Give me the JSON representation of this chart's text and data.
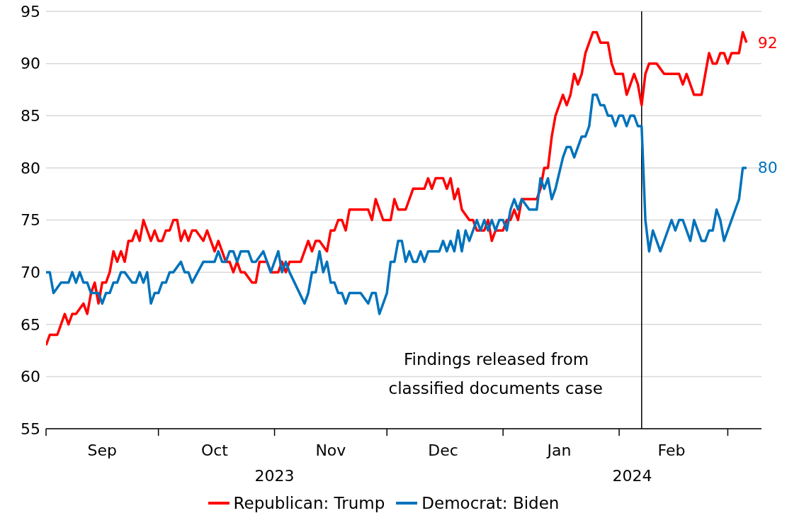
{
  "chart_data": {
    "type": "line",
    "series": [
      {
        "name": "Republican: Trump",
        "color": "#ff0000",
        "x": [
          "2023-09-01",
          "2023-09-02",
          "2023-09-04",
          "2023-09-06",
          "2023-09-07",
          "2023-09-08",
          "2023-09-09",
          "2023-09-11",
          "2023-09-12",
          "2023-09-13",
          "2023-09-14",
          "2023-09-15",
          "2023-09-16",
          "2023-09-17",
          "2023-09-18",
          "2023-09-19",
          "2023-09-20",
          "2023-09-21",
          "2023-09-22",
          "2023-09-23",
          "2023-09-24",
          "2023-09-25",
          "2023-09-26",
          "2023-09-27",
          "2023-09-28",
          "2023-09-29",
          "2023-09-30",
          "2023-10-01",
          "2023-10-02",
          "2023-10-03",
          "2023-10-04",
          "2023-10-05",
          "2023-10-06",
          "2023-10-07",
          "2023-10-08",
          "2023-10-09",
          "2023-10-10",
          "2023-10-11",
          "2023-10-13",
          "2023-10-14",
          "2023-10-15",
          "2023-10-16",
          "2023-10-17",
          "2023-10-18",
          "2023-10-19",
          "2023-10-20",
          "2023-10-21",
          "2023-10-22",
          "2023-10-23",
          "2023-10-24",
          "2023-10-26",
          "2023-10-27",
          "2023-10-28",
          "2023-10-30",
          "2023-10-31",
          "2023-11-02",
          "2023-11-03",
          "2023-11-04",
          "2023-11-05",
          "2023-11-08",
          "2023-11-10",
          "2023-11-11",
          "2023-11-12",
          "2023-11-13",
          "2023-11-15",
          "2023-11-16",
          "2023-11-17",
          "2023-11-18",
          "2023-11-19",
          "2023-11-20",
          "2023-11-21",
          "2023-11-26",
          "2023-11-27",
          "2023-11-28",
          "2023-11-30",
          "2023-12-02",
          "2023-12-03",
          "2023-12-04",
          "2023-12-06",
          "2023-12-08",
          "2023-12-11",
          "2023-12-12",
          "2023-12-13",
          "2023-12-14",
          "2023-12-16",
          "2023-12-17",
          "2023-12-18",
          "2023-12-19",
          "2023-12-20",
          "2023-12-21",
          "2023-12-23",
          "2023-12-24",
          "2023-12-25",
          "2023-12-27",
          "2023-12-28",
          "2023-12-29",
          "2023-12-30",
          "2024-01-01",
          "2024-01-02",
          "2024-01-03",
          "2024-01-04",
          "2024-01-05",
          "2024-01-06",
          "2024-01-10",
          "2024-01-11",
          "2024-01-12",
          "2024-01-13",
          "2024-01-14",
          "2024-01-15",
          "2024-01-17",
          "2024-01-18",
          "2024-01-19",
          "2024-01-20",
          "2024-01-21",
          "2024-01-22",
          "2024-01-23",
          "2024-01-24",
          "2024-01-25",
          "2024-01-26",
          "2024-01-27",
          "2024-01-29",
          "2024-01-30",
          "2024-01-31",
          "2024-02-02",
          "2024-02-03",
          "2024-02-04",
          "2024-02-05",
          "2024-02-06",
          "2024-02-07",
          "2024-02-08",
          "2024-02-09",
          "2024-02-11",
          "2024-02-13",
          "2024-02-17",
          "2024-02-18",
          "2024-02-19",
          "2024-02-21",
          "2024-02-23",
          "2024-02-25",
          "2024-02-26",
          "2024-02-27",
          "2024-02-28",
          "2024-02-29",
          "2024-03-01",
          "2024-03-02",
          "2024-03-04",
          "2024-03-05",
          "2024-03-06"
        ],
        "values": [
          63,
          64,
          64,
          66,
          65,
          66,
          66,
          67,
          66,
          68,
          69,
          67,
          69,
          69,
          70,
          72,
          71,
          72,
          71,
          73,
          73,
          74,
          73,
          75,
          74,
          73,
          74,
          73,
          73,
          74,
          74,
          75,
          75,
          73,
          74,
          73,
          74,
          74,
          73,
          74,
          73,
          72,
          73,
          72,
          71,
          71,
          70,
          71,
          70,
          70,
          69,
          69,
          71,
          71,
          70,
          70,
          71,
          70,
          71,
          71,
          73,
          72,
          73,
          73,
          72,
          74,
          74,
          75,
          75,
          74,
          76,
          76,
          75,
          77,
          75,
          75,
          77,
          76,
          76,
          78,
          78,
          79,
          78,
          79,
          79,
          78,
          79,
          77,
          78,
          76,
          75,
          75,
          74,
          74,
          75,
          73,
          74,
          74,
          75,
          75,
          76,
          75,
          77,
          77,
          78,
          80,
          80,
          83,
          85,
          87,
          86,
          87,
          89,
          88,
          89,
          91,
          92,
          93,
          93,
          92,
          92,
          90,
          89,
          89,
          87,
          88,
          89,
          88,
          86,
          89,
          90,
          90,
          89,
          89,
          88,
          89,
          87,
          87,
          91,
          90,
          90,
          91,
          91,
          90,
          91,
          91,
          93,
          92
        ],
        "value_labels": [
          null,
          null,
          null,
          null,
          null,
          null,
          null,
          null,
          null,
          null,
          null,
          null,
          null,
          null,
          null,
          null,
          null,
          null,
          null,
          null,
          null,
          null,
          null,
          null,
          null,
          null,
          null,
          null,
          null,
          null,
          null,
          null,
          null,
          null,
          null,
          null,
          null,
          null,
          null,
          null,
          null,
          null,
          null,
          null,
          null,
          null,
          null,
          null,
          null,
          null,
          null,
          null,
          null,
          null,
          null,
          null,
          null,
          null,
          null,
          null,
          null,
          null,
          null,
          null,
          null,
          null,
          null,
          null,
          null,
          null,
          null,
          null,
          null,
          null,
          null,
          null,
          null,
          null,
          null,
          null,
          null,
          null,
          null,
          null,
          null,
          null,
          null,
          null,
          null,
          null,
          null,
          null,
          null,
          null,
          null,
          null,
          null,
          null,
          null,
          null,
          null,
          null,
          null,
          null,
          null,
          null,
          null,
          null,
          null,
          null,
          null,
          null,
          null,
          null,
          null,
          null,
          null,
          null,
          null,
          null,
          null,
          null,
          null,
          null,
          null,
          null,
          null,
          null,
          null,
          null,
          null,
          null,
          null,
          null,
          null,
          null,
          null,
          null,
          null,
          null,
          null,
          null,
          null,
          null,
          null,
          null,
          null,
          "92"
        ]
      },
      {
        "name": "Democrat: Biden",
        "color": "#0072bb",
        "x": [
          "2023-09-01",
          "2023-09-02",
          "2023-09-03",
          "2023-09-05",
          "2023-09-07",
          "2023-09-08",
          "2023-09-09",
          "2023-09-10",
          "2023-09-11",
          "2023-09-12",
          "2023-09-13",
          "2023-09-15",
          "2023-09-16",
          "2023-09-17",
          "2023-09-18",
          "2023-09-19",
          "2023-09-20",
          "2023-09-21",
          "2023-09-22",
          "2023-09-24",
          "2023-09-25",
          "2023-09-26",
          "2023-09-27",
          "2023-09-28",
          "2023-09-29",
          "2023-09-30",
          "2023-10-01",
          "2023-10-02",
          "2023-10-03",
          "2023-10-04",
          "2023-10-05",
          "2023-10-07",
          "2023-10-08",
          "2023-10-09",
          "2023-10-10",
          "2023-10-13",
          "2023-10-16",
          "2023-10-17",
          "2023-10-18",
          "2023-10-19",
          "2023-10-20",
          "2023-10-21",
          "2023-10-22",
          "2023-10-23",
          "2023-10-25",
          "2023-10-26",
          "2023-10-27",
          "2023-10-29",
          "2023-10-30",
          "2023-10-31",
          "2023-11-01",
          "2023-11-02",
          "2023-11-03",
          "2023-11-04",
          "2023-11-05",
          "2023-11-09",
          "2023-11-10",
          "2023-11-11",
          "2023-11-12",
          "2023-11-13",
          "2023-11-14",
          "2023-11-15",
          "2023-11-16",
          "2023-11-17",
          "2023-11-18",
          "2023-11-19",
          "2023-11-20",
          "2023-11-21",
          "2023-11-24",
          "2023-11-26",
          "2023-11-27",
          "2023-11-28",
          "2023-11-29",
          "2023-12-01",
          "2023-12-02",
          "2023-12-03",
          "2023-12-04",
          "2023-12-05",
          "2023-12-06",
          "2023-12-07",
          "2023-12-08",
          "2023-12-09",
          "2023-12-10",
          "2023-12-11",
          "2023-12-12",
          "2023-12-15",
          "2023-12-16",
          "2023-12-17",
          "2023-12-18",
          "2023-12-19",
          "2023-12-20",
          "2023-12-21",
          "2023-12-22",
          "2023-12-23",
          "2023-12-24",
          "2023-12-25",
          "2023-12-26",
          "2023-12-27",
          "2023-12-28",
          "2023-12-29",
          "2023-12-30",
          "2023-12-31",
          "2024-01-01",
          "2024-01-02",
          "2024-01-03",
          "2024-01-04",
          "2024-01-05",
          "2024-01-06",
          "2024-01-08",
          "2024-01-10",
          "2024-01-11",
          "2024-01-12",
          "2024-01-13",
          "2024-01-14",
          "2024-01-15",
          "2024-01-17",
          "2024-01-18",
          "2024-01-19",
          "2024-01-20",
          "2024-01-22",
          "2024-01-23",
          "2024-01-24",
          "2024-01-25",
          "2024-01-26",
          "2024-01-27",
          "2024-01-28",
          "2024-01-29",
          "2024-01-30",
          "2024-01-31",
          "2024-02-01",
          "2024-02-02",
          "2024-02-03",
          "2024-02-04",
          "2024-02-05",
          "2024-02-06",
          "2024-02-07",
          "2024-02-08",
          "2024-02-09",
          "2024-02-10",
          "2024-02-12",
          "2024-02-15",
          "2024-02-16",
          "2024-02-17",
          "2024-02-18",
          "2024-02-20",
          "2024-02-21",
          "2024-02-23",
          "2024-02-24",
          "2024-02-25",
          "2024-02-26",
          "2024-02-27",
          "2024-02-28",
          "2024-02-29",
          "2024-03-04",
          "2024-03-05",
          "2024-03-06"
        ],
        "values": [
          70,
          70,
          68,
          69,
          69,
          70,
          69,
          70,
          69,
          69,
          68,
          68,
          67,
          68,
          68,
          69,
          69,
          70,
          70,
          69,
          69,
          70,
          69,
          70,
          67,
          68,
          68,
          69,
          69,
          70,
          70,
          71,
          70,
          70,
          69,
          71,
          71,
          72,
          71,
          71,
          72,
          72,
          71,
          72,
          72,
          71,
          71,
          72,
          71,
          70,
          71,
          72,
          70,
          71,
          70,
          67,
          68,
          70,
          70,
          72,
          70,
          71,
          69,
          69,
          68,
          68,
          67,
          68,
          68,
          67,
          68,
          68,
          66,
          68,
          71,
          71,
          73,
          73,
          71,
          72,
          71,
          71,
          72,
          71,
          72,
          72,
          73,
          72,
          73,
          72,
          74,
          72,
          74,
          73,
          74,
          75,
          74,
          75,
          74,
          75,
          74,
          75,
          75,
          74,
          76,
          77,
          76,
          77,
          76,
          76,
          79,
          78,
          79,
          77,
          78,
          81,
          82,
          82,
          81,
          83,
          83,
          84,
          87,
          87,
          86,
          86,
          85,
          85,
          84,
          85,
          85,
          84,
          85,
          85,
          84,
          84,
          75,
          72,
          74,
          72,
          75,
          74,
          75,
          75,
          73,
          75,
          73,
          73,
          74,
          74,
          76,
          75,
          73,
          77,
          80,
          80
        ],
        "value_labels": [
          null,
          null,
          null,
          null,
          null,
          null,
          null,
          null,
          null,
          null,
          null,
          null,
          null,
          null,
          null,
          null,
          null,
          null,
          null,
          null,
          null,
          null,
          null,
          null,
          null,
          null,
          null,
          null,
          null,
          null,
          null,
          null,
          null,
          null,
          null,
          null,
          null,
          null,
          null,
          null,
          null,
          null,
          null,
          null,
          null,
          null,
          null,
          null,
          null,
          null,
          null,
          null,
          null,
          null,
          null,
          null,
          null,
          null,
          null,
          null,
          null,
          null,
          null,
          null,
          null,
          null,
          null,
          null,
          null,
          null,
          null,
          null,
          null,
          null,
          null,
          null,
          null,
          null,
          null,
          null,
          null,
          null,
          null,
          null,
          null,
          null,
          null,
          null,
          null,
          null,
          null,
          null,
          null,
          null,
          null,
          null,
          null,
          null,
          null,
          null,
          null,
          null,
          null,
          null,
          null,
          null,
          null,
          null,
          null,
          null,
          null,
          null,
          null,
          null,
          null,
          null,
          null,
          null,
          null,
          null,
          null,
          null,
          null,
          null,
          null,
          null,
          null,
          null,
          null,
          null,
          null,
          null,
          null,
          null,
          null,
          null,
          null,
          null,
          null,
          null,
          null,
          null,
          null,
          null,
          null,
          null,
          null,
          null,
          null,
          null,
          null,
          null,
          null,
          null,
          null,
          "80"
        ]
      }
    ],
    "xlim": [
      "2023-09-01",
      "2024-03-10"
    ],
    "xticks": [
      {
        "value": "2023-09-01",
        "label": null
      },
      {
        "value": "2023-10-01",
        "label": null
      },
      {
        "value": "2023-11-01",
        "label": null
      },
      {
        "value": "2023-12-01",
        "label": null
      },
      {
        "value": "2024-01-01",
        "label": null
      },
      {
        "value": "2024-02-01",
        "label": null
      },
      {
        "value": "2024-03-01",
        "label": null
      },
      {
        "value": "2023-09-16",
        "label": "Sep"
      },
      {
        "value": "2023-10-16",
        "label": "Oct"
      },
      {
        "value": "2023-11-16",
        "label": "Nov"
      },
      {
        "value": "2023-12-16",
        "label": "Dec"
      },
      {
        "value": "2024-01-16",
        "label": "Jan"
      },
      {
        "value": "2024-02-15",
        "label": "Feb"
      }
    ],
    "ylim": [
      55,
      95
    ],
    "yticks": [
      55,
      60,
      65,
      70,
      75,
      80,
      85,
      90,
      95
    ],
    "grid": "y",
    "legend": "bottom",
    "ref_lines": [
      {
        "axis": "x",
        "value": "2024-02-07",
        "label": "Findings released from classified documents case",
        "color": "#000000"
      }
    ],
    "annotations": [
      "2023",
      "2024"
    ]
  }
}
